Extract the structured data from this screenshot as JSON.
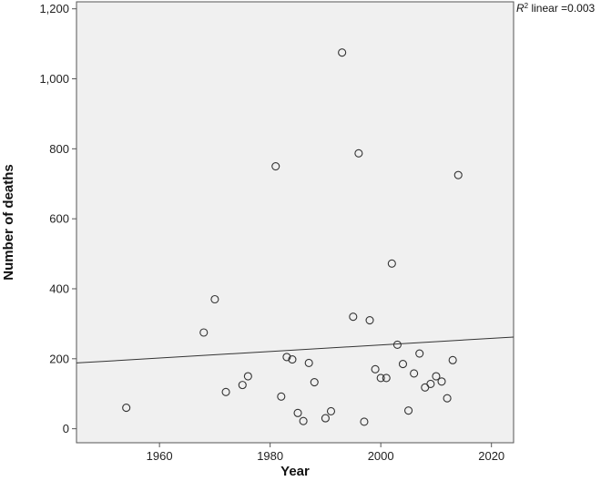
{
  "chart_data": {
    "type": "scatter",
    "title": "",
    "xlabel": "Year",
    "ylabel": "Number of deaths",
    "xlim": [
      1945,
      2024
    ],
    "ylim": [
      -40,
      1220
    ],
    "xticks": [
      1960,
      1980,
      2000,
      2020
    ],
    "xtick_labels": [
      "1960",
      "1980",
      "2000",
      "2020"
    ],
    "yticks": [
      0,
      200,
      400,
      600,
      800,
      1000,
      1200
    ],
    "ytick_labels": [
      "0",
      "200",
      "400",
      "600",
      "800",
      "1,000",
      "1,200"
    ],
    "grid": false,
    "plot_background": "#f0f0f0",
    "marker_color": "#333333",
    "fit_line_color": "#333333",
    "annotation": {
      "symbol": "R",
      "superscript": "2",
      "text": " linear =0.003"
    },
    "fit_line": {
      "x": [
        1945,
        2024
      ],
      "y": [
        188,
        262
      ]
    },
    "points": [
      {
        "x": 1954,
        "y": 60
      },
      {
        "x": 1968,
        "y": 275
      },
      {
        "x": 1970,
        "y": 370
      },
      {
        "x": 1972,
        "y": 105
      },
      {
        "x": 1975,
        "y": 125
      },
      {
        "x": 1976,
        "y": 150
      },
      {
        "x": 1981,
        "y": 750
      },
      {
        "x": 1982,
        "y": 92
      },
      {
        "x": 1983,
        "y": 205
      },
      {
        "x": 1984,
        "y": 198
      },
      {
        "x": 1985,
        "y": 45
      },
      {
        "x": 1986,
        "y": 22
      },
      {
        "x": 1987,
        "y": 188
      },
      {
        "x": 1988,
        "y": 133
      },
      {
        "x": 1990,
        "y": 30
      },
      {
        "x": 1991,
        "y": 50
      },
      {
        "x": 1993,
        "y": 1075
      },
      {
        "x": 1995,
        "y": 320
      },
      {
        "x": 1996,
        "y": 787
      },
      {
        "x": 1997,
        "y": 20
      },
      {
        "x": 1998,
        "y": 310
      },
      {
        "x": 1999,
        "y": 170
      },
      {
        "x": 2000,
        "y": 145
      },
      {
        "x": 2001,
        "y": 145
      },
      {
        "x": 2002,
        "y": 472
      },
      {
        "x": 2003,
        "y": 240
      },
      {
        "x": 2004,
        "y": 185
      },
      {
        "x": 2005,
        "y": 52
      },
      {
        "x": 2006,
        "y": 158
      },
      {
        "x": 2007,
        "y": 215
      },
      {
        "x": 2008,
        "y": 118
      },
      {
        "x": 2009,
        "y": 128
      },
      {
        "x": 2010,
        "y": 150
      },
      {
        "x": 2011,
        "y": 135
      },
      {
        "x": 2012,
        "y": 87
      },
      {
        "x": 2013,
        "y": 196
      },
      {
        "x": 2014,
        "y": 725
      }
    ]
  }
}
